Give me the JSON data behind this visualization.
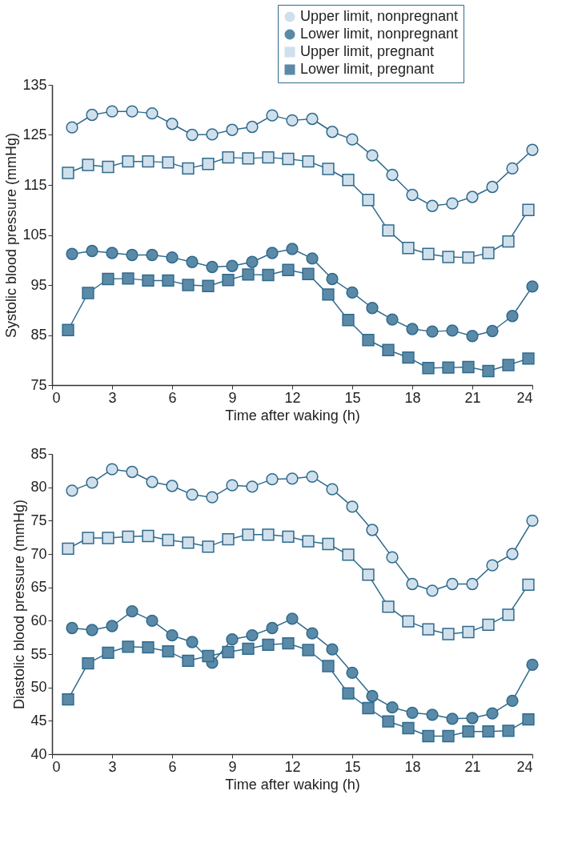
{
  "chart_data": [
    {
      "type": "line",
      "xlabel": "Time after waking (h)",
      "ylabel": "Systolic blood pressure (mmHg)",
      "xlim": [
        0,
        24
      ],
      "xticks": [
        0,
        3,
        6,
        9,
        12,
        15,
        18,
        21,
        24
      ],
      "ylim": [
        75,
        135
      ],
      "yticks": [
        75,
        85,
        95,
        105,
        115,
        125,
        135
      ],
      "grid": false,
      "legend": "top right",
      "line_style": "solid",
      "series": [
        {
          "name": "Upper limit, nonpregnant",
          "color": "#cfe0ec",
          "marker": "circle",
          "x": [
            1,
            2,
            3,
            4,
            5,
            6,
            7,
            8,
            9,
            10,
            11,
            12,
            13,
            14,
            15,
            16,
            17,
            18,
            19,
            20,
            21,
            22,
            23,
            24
          ],
          "values": [
            126.5,
            129,
            129.7,
            129.7,
            129.3,
            127.2,
            125,
            125.1,
            126,
            126.6,
            128.9,
            127.9,
            128.2,
            125.6,
            124.1,
            120.9,
            117,
            113,
            110.8,
            111.3,
            112.6,
            114.6,
            118.3,
            122
          ]
        },
        {
          "name": "Lower limit, nonpregnant",
          "color": "#5b8aa8",
          "marker": "circle",
          "x": [
            1,
            2,
            3,
            4,
            5,
            6,
            7,
            8,
            9,
            10,
            11,
            12,
            13,
            14,
            15,
            16,
            17,
            18,
            19,
            20,
            21,
            22,
            23,
            24
          ],
          "values": [
            101.2,
            101.8,
            101.4,
            101,
            101,
            100.5,
            99.6,
            98.6,
            98.8,
            99.6,
            101.4,
            102.2,
            100.3,
            96.2,
            93.5,
            90.4,
            88.1,
            86.2,
            85.7,
            85.9,
            84.8,
            85.8,
            88.8,
            94.7
          ]
        },
        {
          "name": "Upper limit, pregnant",
          "color": "#cfe0ec",
          "marker": "square",
          "x": [
            0.8,
            1.8,
            2.8,
            3.8,
            4.8,
            5.8,
            6.8,
            7.8,
            8.8,
            9.8,
            10.8,
            11.8,
            12.8,
            13.8,
            14.8,
            15.8,
            16.8,
            17.8,
            18.8,
            19.8,
            20.8,
            21.8,
            22.8,
            23.8
          ],
          "values": [
            117.4,
            119,
            118.6,
            119.7,
            119.7,
            119.5,
            118.3,
            119.2,
            120.5,
            120.3,
            120.5,
            120.2,
            119.7,
            118.2,
            116,
            112,
            105.9,
            102.4,
            101.2,
            100.6,
            100.5,
            101.4,
            103.7,
            110
          ]
        },
        {
          "name": "Lower limit, pregnant",
          "color": "#5b8aa8",
          "marker": "square",
          "x": [
            0.8,
            1.8,
            2.8,
            3.8,
            4.8,
            5.8,
            6.8,
            7.8,
            8.8,
            9.8,
            10.8,
            11.8,
            12.8,
            13.8,
            14.8,
            15.8,
            16.8,
            17.8,
            18.8,
            19.8,
            20.8,
            21.8,
            22.8,
            23.8
          ],
          "values": [
            86,
            93.4,
            96.2,
            96.3,
            95.9,
            95.9,
            95,
            94.8,
            96,
            97.1,
            97,
            98,
            97.2,
            93.1,
            88,
            84,
            82,
            80.5,
            78.4,
            78.5,
            78.6,
            77.8,
            79,
            80.3
          ]
        }
      ]
    },
    {
      "type": "line",
      "xlabel": "Time after waking (h)",
      "ylabel": "Diastolic blood pressure (mmHg)",
      "xlim": [
        0,
        24
      ],
      "xticks": [
        0,
        3,
        6,
        9,
        12,
        15,
        18,
        21,
        24
      ],
      "ylim": [
        40,
        85
      ],
      "yticks": [
        40,
        45,
        50,
        55,
        60,
        65,
        70,
        75,
        80,
        85
      ],
      "grid": false,
      "legend": false,
      "line_style": "solid",
      "series": [
        {
          "color": "#cfe0ec",
          "marker": "circle",
          "x": [
            1,
            2,
            3,
            4,
            5,
            6,
            7,
            8,
            9,
            10,
            11,
            12,
            13,
            14,
            15,
            16,
            17,
            18,
            19,
            20,
            21,
            22,
            23,
            24
          ],
          "values": [
            79.5,
            80.7,
            82.7,
            82.3,
            80.8,
            80.2,
            78.9,
            78.5,
            80.3,
            80.1,
            81.2,
            81.3,
            81.6,
            79.7,
            77.1,
            73.6,
            69.5,
            65.5,
            64.5,
            65.5,
            65.5,
            68.3,
            70,
            75
          ]
        },
        {
          "color": "#5b8aa8",
          "marker": "circle",
          "x": [
            1,
            2,
            3,
            4,
            5,
            6,
            7,
            8,
            9,
            10,
            11,
            12,
            13,
            14,
            15,
            16,
            17,
            18,
            19,
            20,
            21,
            22,
            23,
            24
          ],
          "values": [
            58.9,
            58.6,
            59.2,
            61.4,
            60,
            57.8,
            56.8,
            53.7,
            57.2,
            57.8,
            58.9,
            60.3,
            58.1,
            55.7,
            52.2,
            48.7,
            47,
            46.2,
            45.9,
            45.3,
            45.4,
            46.1,
            48,
            53.4
          ]
        },
        {
          "color": "#cfe0ec",
          "marker": "square",
          "x": [
            0.8,
            1.8,
            2.8,
            3.8,
            4.8,
            5.8,
            6.8,
            7.8,
            8.8,
            9.8,
            10.8,
            11.8,
            12.8,
            13.8,
            14.8,
            15.8,
            16.8,
            17.8,
            18.8,
            19.8,
            20.8,
            21.8,
            22.8,
            23.8
          ],
          "values": [
            70.8,
            72.4,
            72.4,
            72.6,
            72.7,
            72.1,
            71.7,
            71.1,
            72.2,
            72.9,
            72.9,
            72.6,
            71.9,
            71.5,
            69.9,
            66.9,
            62.1,
            59.9,
            58.7,
            58,
            58.3,
            59.4,
            60.9,
            65.4
          ]
        },
        {
          "color": "#5b8aa8",
          "marker": "square",
          "x": [
            0.8,
            1.8,
            2.8,
            3.8,
            4.8,
            5.8,
            6.8,
            7.8,
            8.8,
            9.8,
            10.8,
            11.8,
            12.8,
            13.8,
            14.8,
            15.8,
            16.8,
            17.8,
            18.8,
            19.8,
            20.8,
            21.8,
            22.8,
            23.8
          ],
          "values": [
            48.2,
            53.6,
            55.2,
            56.1,
            56,
            55.4,
            54,
            54.7,
            55.3,
            55.8,
            56.4,
            56.6,
            55.6,
            53.2,
            49.1,
            46.9,
            44.9,
            43.9,
            42.7,
            42.7,
            43.4,
            43.4,
            43.5,
            45.2
          ]
        }
      ]
    }
  ]
}
